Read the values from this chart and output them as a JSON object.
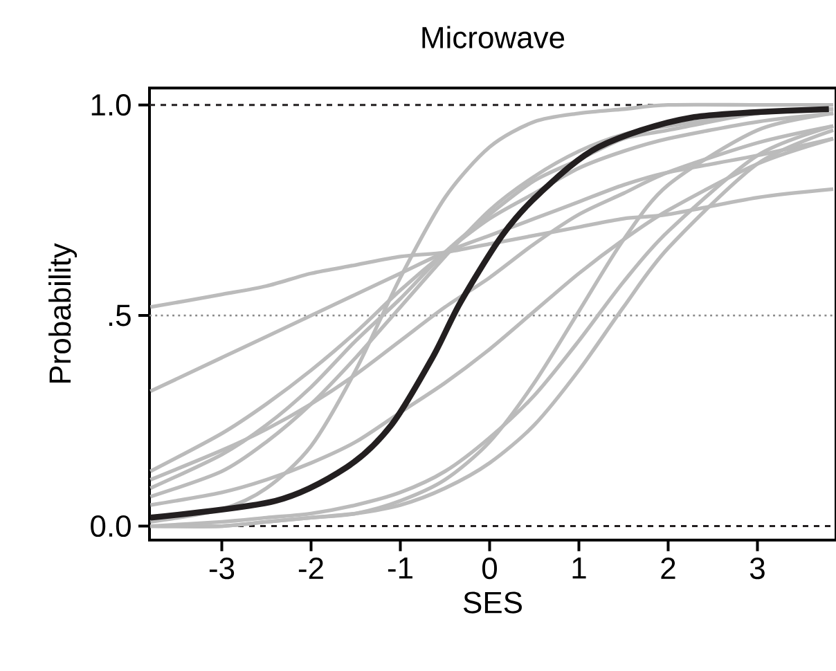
{
  "chart_data": {
    "type": "line",
    "title": "Microwave",
    "xlabel": "SES",
    "ylabel": "Probability",
    "xlim": [
      -3.81,
      3.88
    ],
    "ylim": [
      -0.033,
      1.04
    ],
    "xticks": [
      -3,
      -2,
      -1,
      0,
      1,
      2,
      3
    ],
    "yticks": [
      {
        "value": 0,
        "label": "0.0"
      },
      {
        "value": 0.5,
        "label": ".5"
      },
      {
        "value": 1,
        "label": "1.0"
      }
    ],
    "ref_lines": [
      {
        "axis": "y",
        "value": 0,
        "color": "#231f20",
        "line_style": "dashed"
      },
      {
        "axis": "y",
        "value": 1,
        "color": "#231f20",
        "line_style": "dashed"
      },
      {
        "axis": "y",
        "value": 0.5,
        "color": "#8a8a8a",
        "line_style": "dotted"
      }
    ],
    "marker": "none",
    "line_style": "solid",
    "x": [
      -3.8,
      -3,
      -2.5,
      -2,
      -1.5,
      -1,
      -0.5,
      0,
      0.5,
      1,
      1.5,
      2,
      3,
      3.85
    ],
    "series": [
      {
        "color": "#bbbbbb",
        "values": [
          0.52,
          0.55,
          0.57,
          0.6,
          0.62,
          0.64,
          0.65,
          0.67,
          0.69,
          0.71,
          0.73,
          0.74,
          0.78,
          0.8
        ]
      },
      {
        "color": "#bbbbbb",
        "values": [
          0.32,
          0.4,
          0.45,
          0.5,
          0.55,
          0.6,
          0.65,
          0.69,
          0.73,
          0.77,
          0.81,
          0.84,
          0.88,
          0.92
        ]
      },
      {
        "color": "#bbbbbb",
        "values": [
          0.01,
          0.04,
          0.09,
          0.19,
          0.37,
          0.59,
          0.78,
          0.9,
          0.96,
          0.98,
          0.99,
          1.0,
          1.0,
          1.0
        ]
      },
      {
        "color": "#bbbbbb",
        "values": [
          0.13,
          0.22,
          0.29,
          0.37,
          0.46,
          0.56,
          0.65,
          0.73,
          0.79,
          0.85,
          0.89,
          0.92,
          0.96,
          0.98
        ]
      },
      {
        "color": "#bbbbbb",
        "values": [
          0.11,
          0.18,
          0.23,
          0.29,
          0.36,
          0.44,
          0.52,
          0.59,
          0.67,
          0.74,
          0.79,
          0.84,
          0.91,
          0.95
        ]
      },
      {
        "color": "#bbbbbb",
        "values": [
          0.09,
          0.17,
          0.24,
          0.33,
          0.44,
          0.54,
          0.65,
          0.74,
          0.82,
          0.87,
          0.92,
          0.94,
          0.98,
          0.99
        ]
      },
      {
        "color": "#bbbbbb",
        "values": [
          0.07,
          0.13,
          0.2,
          0.29,
          0.4,
          0.52,
          0.64,
          0.75,
          0.83,
          0.89,
          0.93,
          0.95,
          0.98,
          0.99
        ]
      },
      {
        "color": "#bbbbbb",
        "values": [
          0.05,
          0.08,
          0.11,
          0.15,
          0.2,
          0.27,
          0.34,
          0.42,
          0.51,
          0.6,
          0.68,
          0.75,
          0.86,
          0.92
        ]
      },
      {
        "color": "#bbbbbb",
        "values": [
          0.0,
          0.0,
          0.01,
          0.02,
          0.03,
          0.06,
          0.11,
          0.2,
          0.34,
          0.51,
          0.68,
          0.81,
          0.94,
          0.98
        ]
      },
      {
        "color": "#bbbbbb",
        "values": [
          0.0,
          0.01,
          0.02,
          0.03,
          0.05,
          0.08,
          0.13,
          0.21,
          0.31,
          0.44,
          0.58,
          0.7,
          0.88,
          0.95
        ]
      },
      {
        "color": "#bbbbbb",
        "values": [
          0.0,
          0.0,
          0.01,
          0.02,
          0.03,
          0.05,
          0.09,
          0.15,
          0.24,
          0.37,
          0.52,
          0.66,
          0.86,
          0.94
        ]
      },
      {
        "color": "#231f20",
        "x": [
          -3.8,
          -2.4,
          -1.6,
          -1.1,
          -0.64,
          -0.33,
          0.14,
          0.56,
          1.22,
          2.26,
          3.8
        ],
        "values": [
          0.02,
          0.06,
          0.14,
          0.24,
          0.4,
          0.53,
          0.69,
          0.79,
          0.9,
          0.97,
          0.99
        ]
      }
    ]
  }
}
